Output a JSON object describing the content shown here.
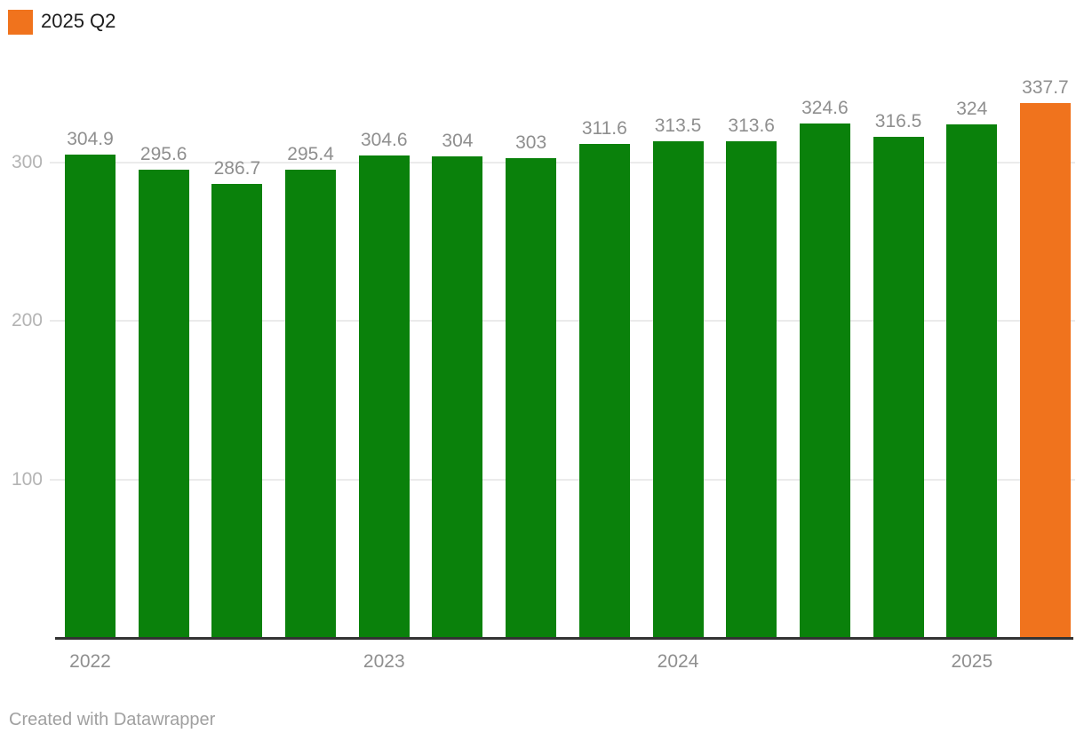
{
  "legend": {
    "label": "2025 Q2",
    "swatch_color": "#f0731d"
  },
  "footer": {
    "attribution": "Created with Datawrapper"
  },
  "chart_data": {
    "type": "bar",
    "title": "",
    "xlabel": "",
    "ylabel": "",
    "values": [
      304.9,
      295.6,
      286.7,
      295.4,
      304.6,
      304,
      303,
      311.6,
      313.5,
      313.6,
      324.6,
      316.5,
      324,
      337.7
    ],
    "bar_labels": [
      "304.9",
      "295.6",
      "286.7",
      "295.4",
      "304.6",
      "304",
      "303",
      "311.6",
      "313.5",
      "313.6",
      "324.6",
      "316.5",
      "324",
      "337.7"
    ],
    "highlight_index": 13,
    "highlight_series_name": "2025 Q2",
    "colors": {
      "default": "#0a810b",
      "highlight": "#f0731d"
    },
    "y_ticks": [
      100,
      200,
      300
    ],
    "ylim": [
      0,
      353
    ],
    "x_ticks": [
      {
        "label": "2022",
        "bar_index": 0
      },
      {
        "label": "2023",
        "bar_index": 4
      },
      {
        "label": "2024",
        "bar_index": 8
      },
      {
        "label": "2025",
        "bar_index": 12
      }
    ],
    "grid": true,
    "legend_position": "top-left"
  }
}
